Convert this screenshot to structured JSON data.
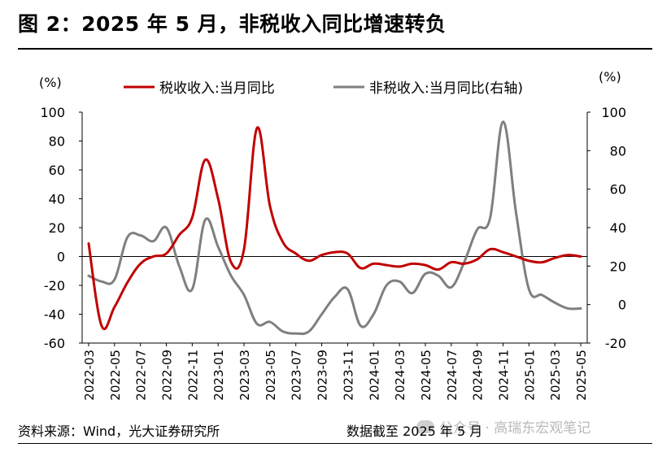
{
  "header": {
    "title": "图 2：2025 年 5 月，非税收入同比增速转负"
  },
  "footer": {
    "source": "资料来源：Wind，光大证券研究所",
    "cutoff": "数据截至 2025 年 5 月",
    "watermark": "公众号 · 高瑞东宏观笔记"
  },
  "chart_data": {
    "type": "line",
    "y_unit_left": "(%)",
    "y_unit_right": "(%)",
    "ylim_left": [
      -60,
      100
    ],
    "ylim_right": [
      -20,
      100
    ],
    "yticks_left": [
      "100",
      "80",
      "60",
      "40",
      "20",
      "0",
      "-20",
      "-40",
      "-60"
    ],
    "yticks_right": [
      "100",
      "80",
      "60",
      "40",
      "20",
      "0",
      "-20"
    ],
    "x": [
      "2022-03",
      "2022-04",
      "2022-05",
      "2022-06",
      "2022-07",
      "2022-08",
      "2022-09",
      "2022-10",
      "2022-11",
      "2022-12",
      "2023-01",
      "2023-02",
      "2023-03",
      "2023-04",
      "2023-05",
      "2023-06",
      "2023-07",
      "2023-08",
      "2023-09",
      "2023-10",
      "2023-11",
      "2023-12",
      "2024-01",
      "2024-02",
      "2024-03",
      "2024-04",
      "2024-05",
      "2024-06",
      "2024-07",
      "2024-08",
      "2024-09",
      "2024-10",
      "2024-11",
      "2024-12",
      "2025-01",
      "2025-02",
      "2025-03",
      "2025-04",
      "2025-05"
    ],
    "xtick_labels": [
      "2022-03",
      "2022-05",
      "2022-07",
      "2022-09",
      "2022-11",
      "2023-01",
      "2023-03",
      "2023-05",
      "2023-07",
      "2023-09",
      "2023-11",
      "2024-01",
      "2024-03",
      "2024-05",
      "2024-07",
      "2024-09",
      "2024-11",
      "2025-01",
      "2025-03",
      "2025-05"
    ],
    "grid": false,
    "legend_position": "top",
    "series": [
      {
        "name": "税收收入:当月同比",
        "axis": "left",
        "color": "#c00000",
        "values": [
          9,
          -48,
          -35,
          -18,
          -5,
          0,
          2,
          15,
          27,
          67,
          40,
          -4,
          5,
          89,
          35,
          10,
          2,
          -3,
          1,
          3,
          2,
          -8,
          -5,
          -6,
          -7,
          -5,
          -6,
          -9,
          -4,
          -5,
          -2,
          5,
          3,
          0,
          -3,
          -4,
          -1,
          1,
          0
        ]
      },
      {
        "name": "非税收入:当月同比(右轴)",
        "axis": "right",
        "color": "#7f7f7f",
        "values": [
          15,
          12,
          13,
          35,
          36,
          33,
          40,
          20,
          8,
          44,
          30,
          15,
          5,
          -10,
          -9,
          -14,
          -15,
          -14,
          -5,
          4,
          8,
          -11,
          -5,
          10,
          12,
          6,
          16,
          15,
          9,
          22,
          39,
          45,
          95,
          48,
          8,
          5,
          1,
          -2,
          -2
        ]
      }
    ]
  }
}
